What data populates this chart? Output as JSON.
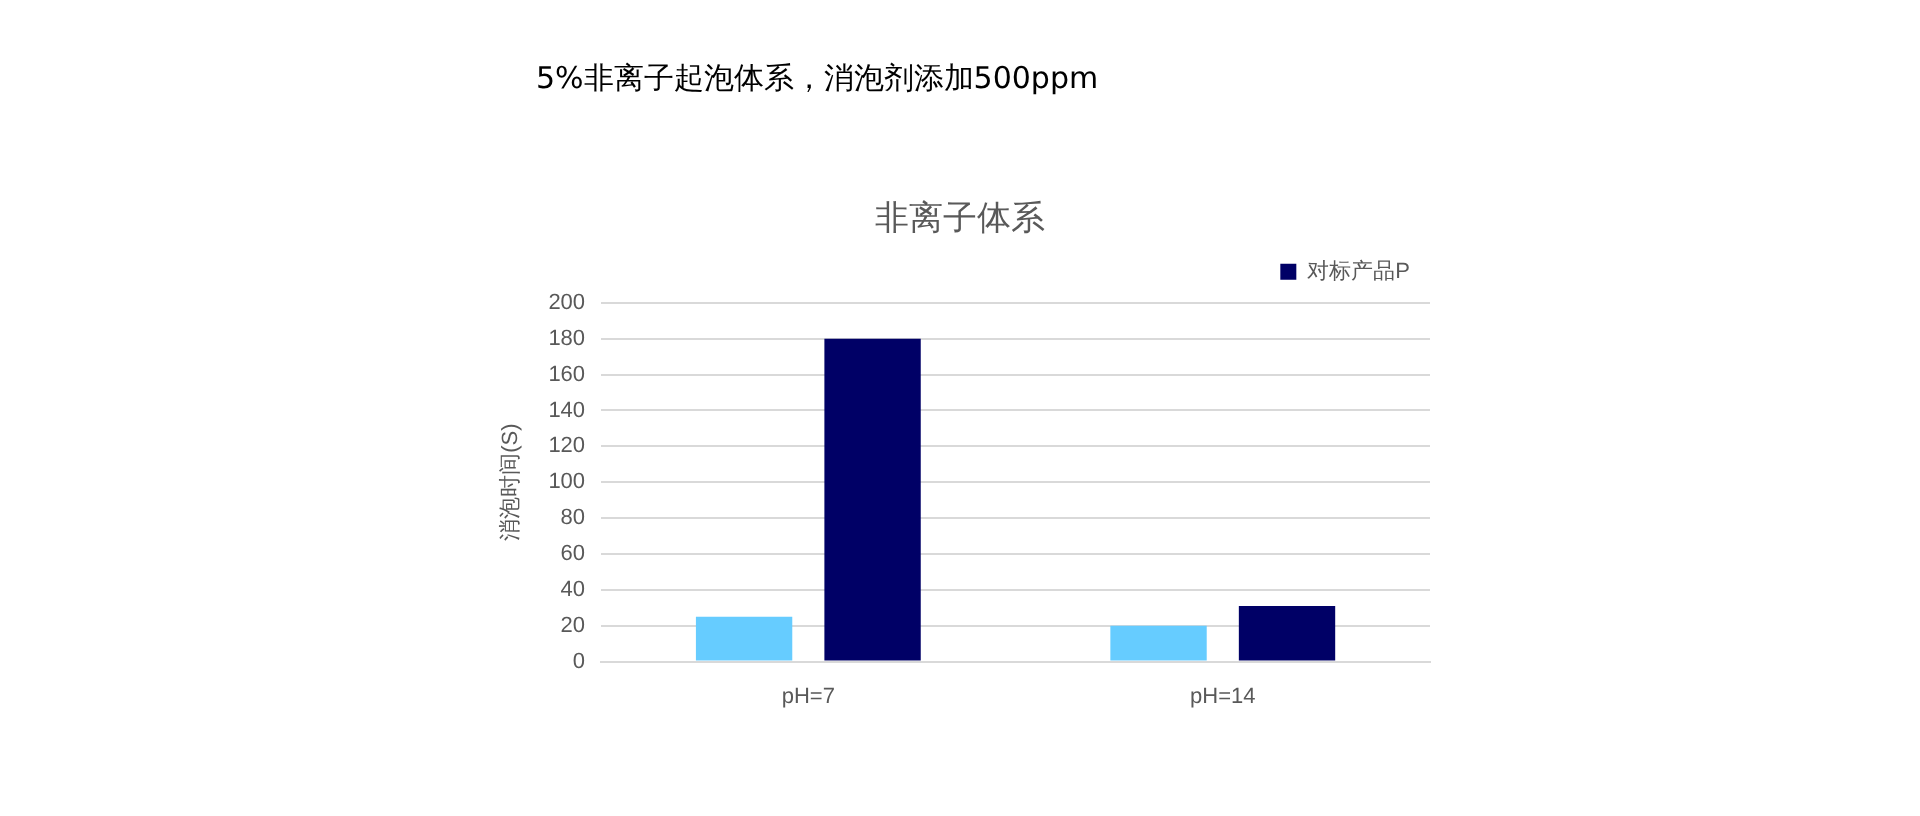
{
  "chart_data": {
    "type": "bar",
    "title": "非离子体系",
    "ylabel": "消泡时间(S)",
    "annotations": [
      "5%非离子起泡体系，消泡剂添加500ppm"
    ],
    "categories": [
      "pH=7",
      "pH=14"
    ],
    "series": [
      {
        "color": "#66ccff",
        "values": [
          25,
          20
        ]
      },
      {
        "name": "对标产品P",
        "color": "#000066",
        "values": [
          180,
          31
        ]
      }
    ],
    "ylim": [
      0,
      200
    ],
    "yticks": [
      0,
      20,
      40,
      60,
      80,
      100,
      120,
      140,
      160,
      180,
      200
    ],
    "grid": "y",
    "legend": "top right"
  }
}
